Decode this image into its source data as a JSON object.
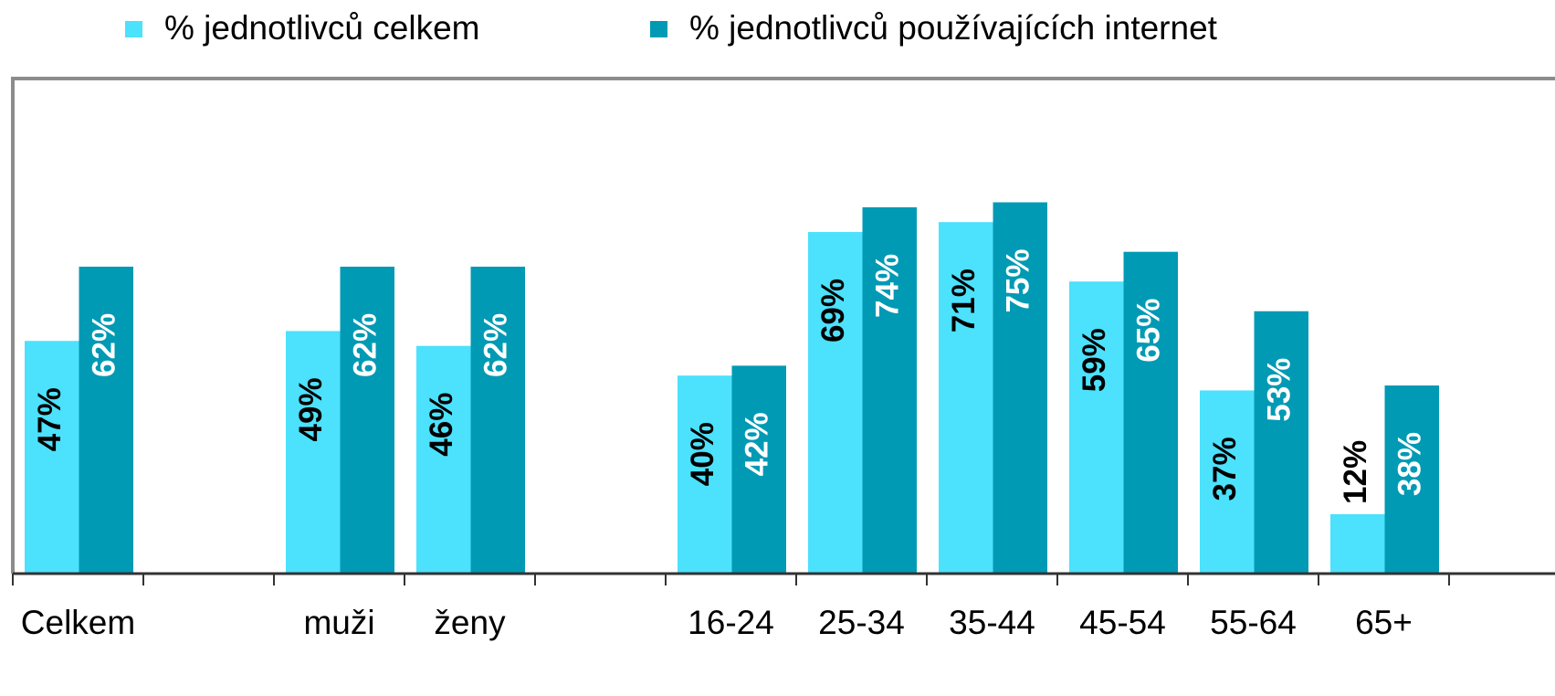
{
  "chart_data": {
    "type": "bar",
    "categories": [
      "Celkem",
      null,
      "muži",
      "ženy",
      null,
      "16-24",
      "25-34",
      "35-44",
      "45-54",
      "55-64",
      "65+"
    ],
    "series": [
      {
        "name": "% jednotlivců celkem",
        "color": "#4ce1fc",
        "values": [
          47,
          null,
          49,
          46,
          null,
          40,
          69,
          71,
          59,
          37,
          12
        ],
        "value_labels": [
          "47%",
          null,
          "49%",
          "46%",
          null,
          "40%",
          "69%",
          "71%",
          "59%",
          "37%",
          "12%"
        ]
      },
      {
        "name": "% jednotlivců používajících internet",
        "color": "#009ab4",
        "values": [
          62,
          null,
          62,
          62,
          null,
          42,
          74,
          75,
          65,
          53,
          38
        ],
        "value_labels": [
          "62%",
          null,
          "62%",
          "62%",
          null,
          "42%",
          "74%",
          "75%",
          "65%",
          "53%",
          "38%"
        ]
      }
    ],
    "ylim": [
      0,
      100
    ]
  }
}
